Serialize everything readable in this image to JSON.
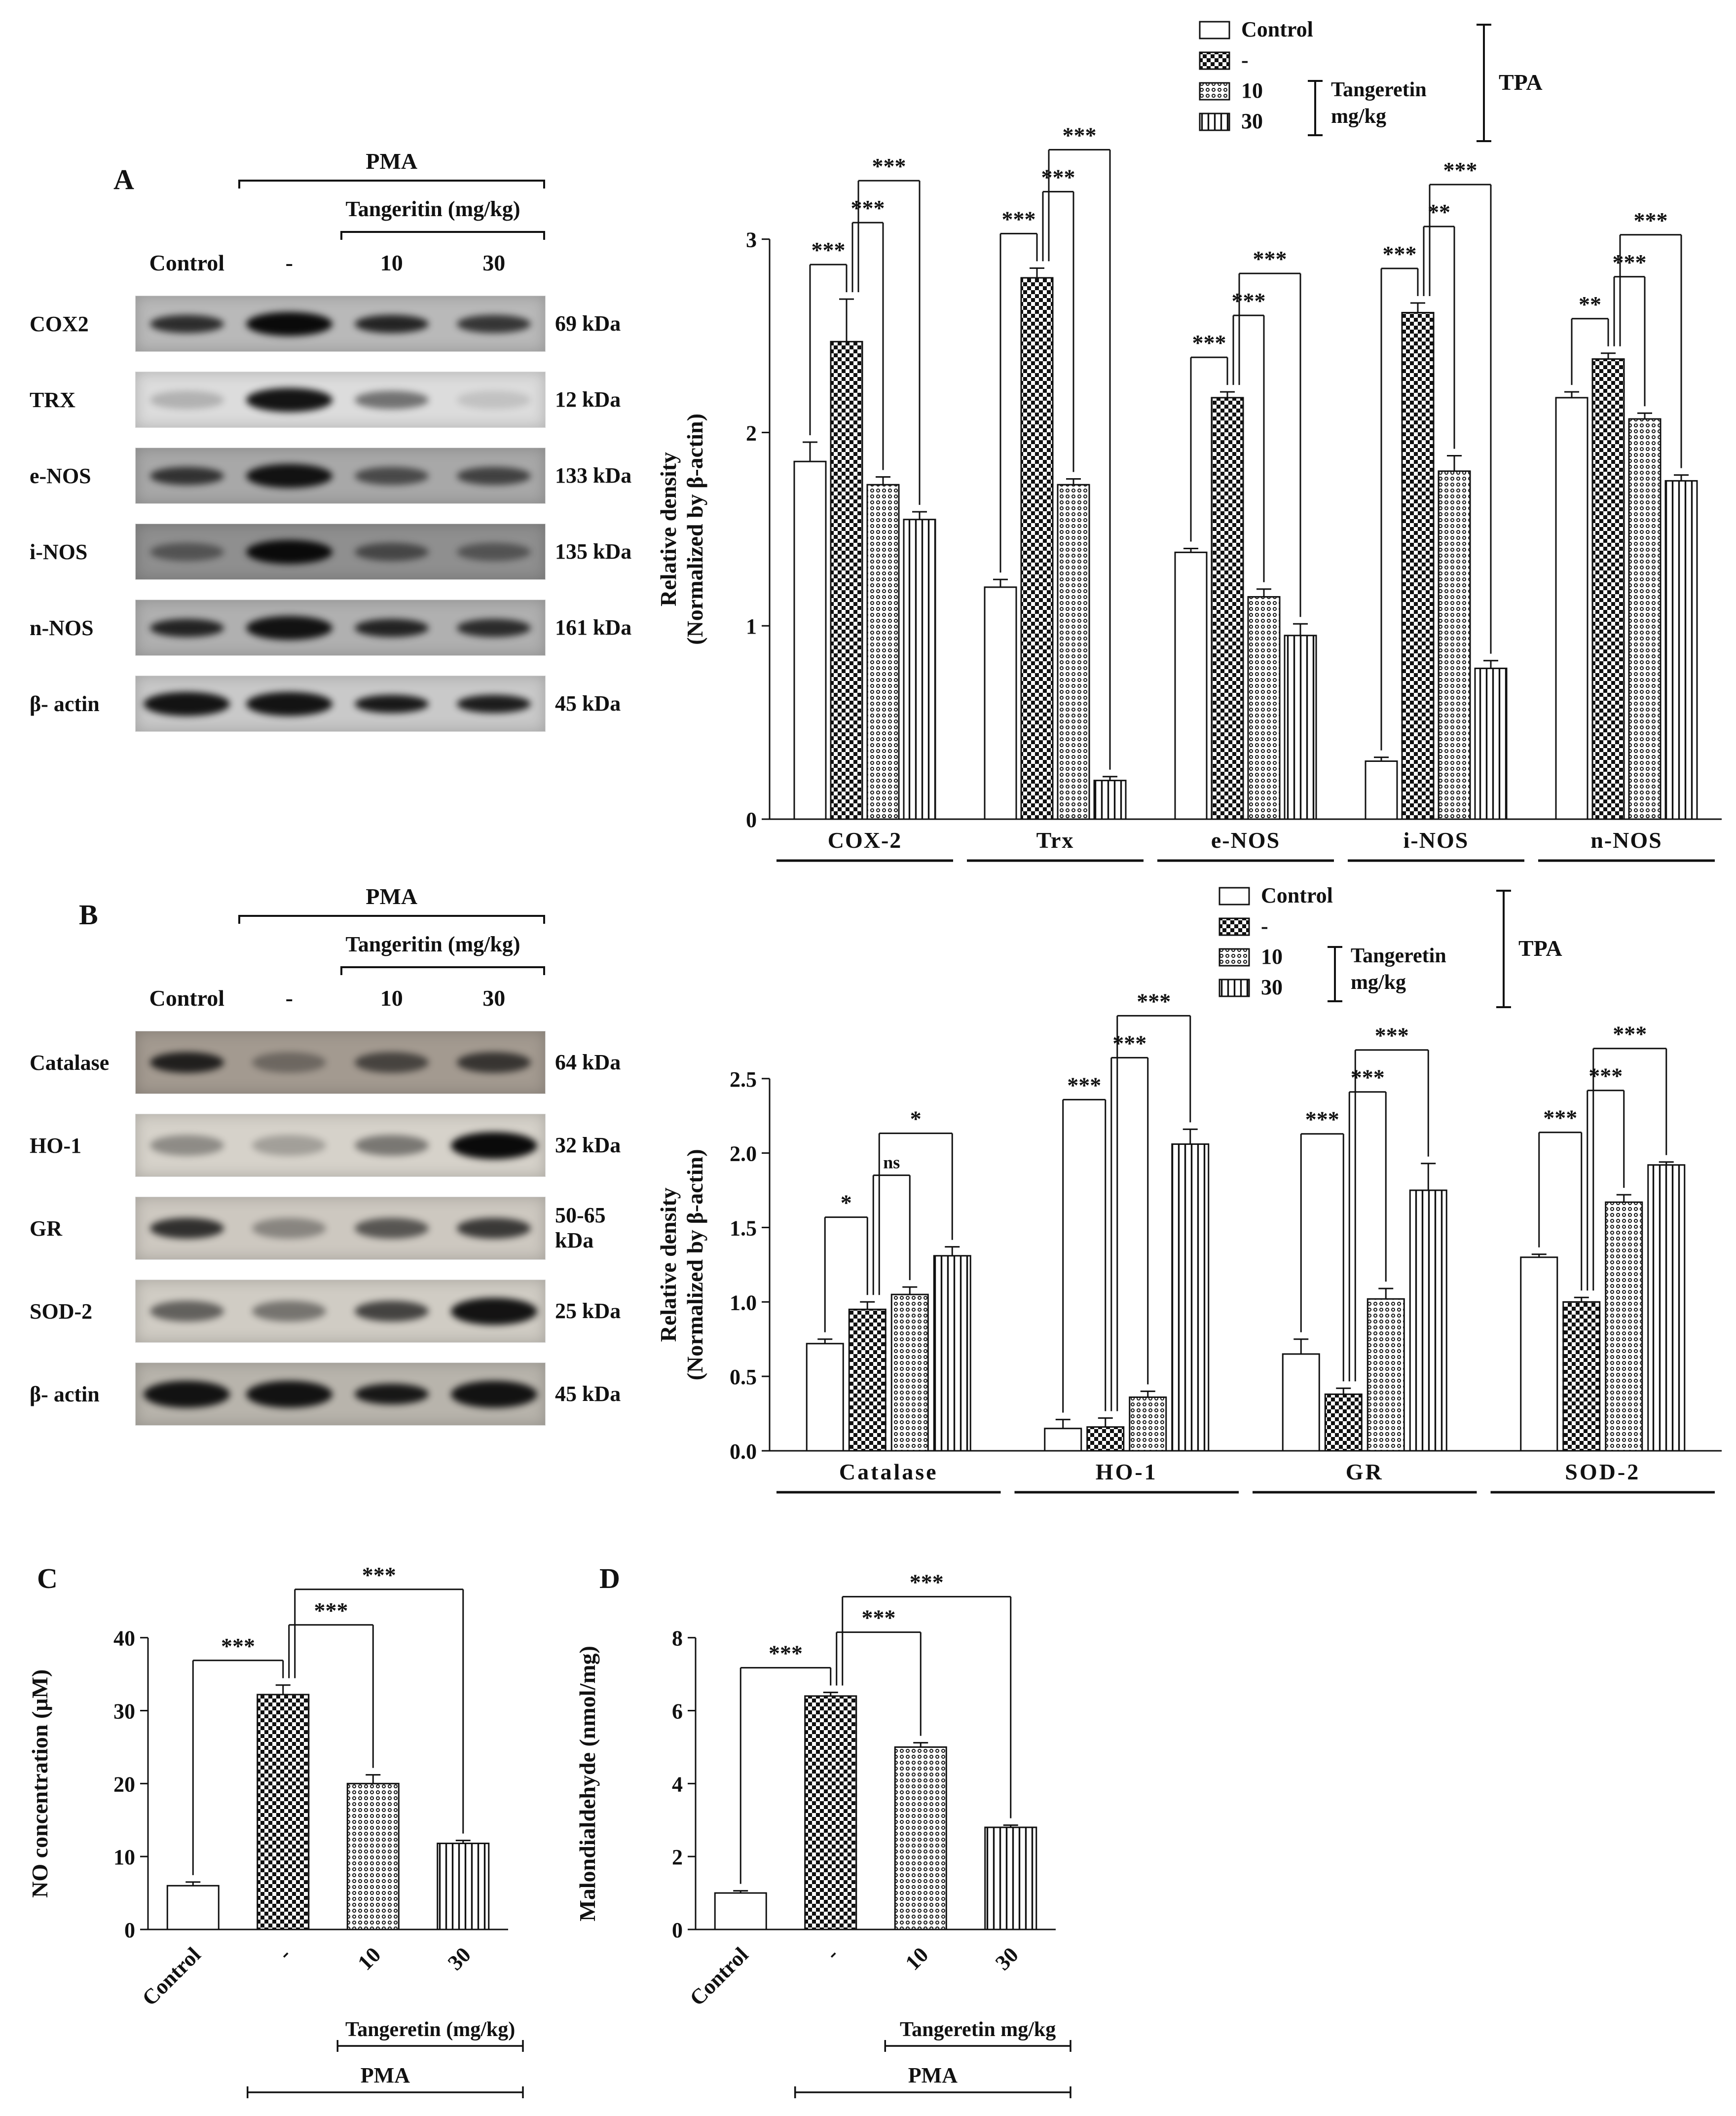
{
  "figure": {
    "panels": {
      "A": {
        "label": "A",
        "blot": {
          "treatment_label": "PMA",
          "dose_label": "Tangeritin (mg/kg)",
          "lane_headers": [
            "Control",
            "-",
            "10",
            "30"
          ],
          "rows": [
            {
              "protein": "COX2",
              "kda": "69 kDa",
              "bg": "#b9b9b9",
              "intensities": [
                0.8,
                1.0,
                0.85,
                0.75
              ]
            },
            {
              "protein": "TRX",
              "kda": "12 kDa",
              "bg": "#dcdcdc",
              "intensities": [
                0.2,
                0.95,
                0.5,
                0.12
              ]
            },
            {
              "protein": "e-NOS",
              "kda": "133 kDa",
              "bg": "#a8a8a8",
              "intensities": [
                0.75,
                0.95,
                0.6,
                0.65
              ]
            },
            {
              "protein": "i-NOS",
              "kda": "135 kDa",
              "bg": "#8f8f8f",
              "intensities": [
                0.45,
                1.0,
                0.55,
                0.45
              ]
            },
            {
              "protein": "n-NOS",
              "kda": "161 kDa",
              "bg": "#b0b0b0",
              "intensities": [
                0.85,
                0.95,
                0.85,
                0.8
              ]
            },
            {
              "protein": "β- actin",
              "kda": "45 kDa",
              "bg": "#c9c9c9",
              "intensities": [
                0.95,
                0.95,
                0.92,
                0.9
              ]
            }
          ]
        },
        "legend": {
          "entries": [
            {
              "label": "Control",
              "pattern": "open"
            },
            {
              "label": "-",
              "pattern": "checker"
            },
            {
              "label": "10",
              "pattern": "dots"
            },
            {
              "label": "30",
              "pattern": "vlines"
            }
          ],
          "bracket_label_lines": [
            "Tangeretin",
            "mg/kg"
          ],
          "outer_label": "TPA"
        }
      },
      "B": {
        "label": "B",
        "blot": {
          "treatment_label": "PMA",
          "dose_label": "Tangeritin (mg/kg)",
          "lane_headers": [
            "Control",
            "-",
            "10",
            "30"
          ],
          "rows": [
            {
              "protein": "Catalase",
              "kda": "64 kDa",
              "bg": "#a39a90",
              "intensities": [
                0.85,
                0.35,
                0.6,
                0.7
              ]
            },
            {
              "protein": "HO-1",
              "kda": "32 kDa",
              "bg": "#d6d2ca",
              "intensities": [
                0.35,
                0.25,
                0.45,
                1.0
              ]
            },
            {
              "protein": "GR",
              "kda": "50-65 kDa",
              "bg": "#cdc8c0",
              "intensities": [
                0.8,
                0.35,
                0.6,
                0.75
              ]
            },
            {
              "protein": "SOD-2",
              "kda": "25 kDa",
              "bg": "#d0ccc4",
              "intensities": [
                0.55,
                0.45,
                0.7,
                0.95
              ]
            },
            {
              "protein": "β- actin",
              "kda": "45 kDa",
              "bg": "#b8b4ac",
              "intensities": [
                0.95,
                0.95,
                0.92,
                0.95
              ]
            }
          ]
        },
        "legend": {
          "entries": [
            {
              "label": "Control",
              "pattern": "open"
            },
            {
              "label": "-",
              "pattern": "checker"
            },
            {
              "label": "10",
              "pattern": "dots"
            },
            {
              "label": "30",
              "pattern": "vlines"
            }
          ],
          "bracket_label_lines": [
            "Tangeretin",
            "mg/kg"
          ],
          "outer_label": "TPA"
        }
      },
      "C": {
        "label": "C"
      },
      "D": {
        "label": "D"
      }
    }
  },
  "chart_data": [
    {
      "id": "A",
      "type": "bar",
      "title": "",
      "ylabel_lines": [
        "Relative density",
        "(Normalized by β-actin)"
      ],
      "ylim": [
        0,
        3
      ],
      "yticks": [
        0,
        1,
        2,
        3
      ],
      "ytick_labels": [
        "0",
        "1",
        "2",
        "3"
      ],
      "categories": [
        "COX-2",
        "Trx",
        "e-NOS",
        "i-NOS",
        "n-NOS"
      ],
      "series": [
        {
          "name": "Control",
          "pattern": "open",
          "values": [
            1.85,
            1.2,
            1.38,
            0.3,
            2.18
          ],
          "errors": [
            0.1,
            0.04,
            0.02,
            0.02,
            0.03
          ]
        },
        {
          "name": "-",
          "pattern": "checker",
          "values": [
            2.47,
            2.8,
            2.18,
            2.62,
            2.38
          ],
          "errors": [
            0.22,
            0.05,
            0.03,
            0.05,
            0.03
          ]
        },
        {
          "name": "10",
          "pattern": "dots",
          "values": [
            1.73,
            1.73,
            1.15,
            1.8,
            2.07
          ],
          "errors": [
            0.04,
            0.03,
            0.04,
            0.08,
            0.03
          ]
        },
        {
          "name": "30",
          "pattern": "vlines",
          "values": [
            1.55,
            0.2,
            0.95,
            0.78,
            1.75
          ],
          "errors": [
            0.04,
            0.02,
            0.06,
            0.04,
            0.03
          ]
        }
      ],
      "significance": {
        "comparisons": [
          [
            0,
            1
          ],
          [
            1,
            2
          ],
          [
            1,
            3
          ]
        ],
        "labels": [
          [
            "***",
            "***",
            "***"
          ],
          [
            "***",
            "***",
            "***"
          ],
          [
            "***",
            "***",
            "***"
          ],
          [
            "***",
            "**",
            "***"
          ],
          [
            "**",
            "***",
            "***"
          ]
        ]
      },
      "legend_position": "top-right",
      "grid": false
    },
    {
      "id": "B",
      "type": "bar",
      "title": "",
      "ylabel_lines": [
        "Relative density",
        "(Normalized by β-actin)"
      ],
      "ylim": [
        0,
        2.5
      ],
      "yticks": [
        0,
        0.5,
        1,
        1.5,
        2,
        2.5
      ],
      "ytick_labels": [
        "0.0",
        "0.5",
        "1.0",
        "1.5",
        "2.0",
        "2.5"
      ],
      "categories": [
        "Catalase",
        "HO-1",
        "GR",
        "SOD-2"
      ],
      "series": [
        {
          "name": "Control",
          "pattern": "open",
          "values": [
            0.72,
            0.15,
            0.65,
            1.3
          ],
          "errors": [
            0.03,
            0.06,
            0.1,
            0.02
          ]
        },
        {
          "name": "-",
          "pattern": "checker",
          "values": [
            0.95,
            0.16,
            0.38,
            1.0
          ],
          "errors": [
            0.05,
            0.06,
            0.04,
            0.03
          ]
        },
        {
          "name": "10",
          "pattern": "dots",
          "values": [
            1.05,
            0.36,
            1.02,
            1.67
          ],
          "errors": [
            0.05,
            0.04,
            0.07,
            0.05
          ]
        },
        {
          "name": "30",
          "pattern": "vlines",
          "values": [
            1.31,
            2.06,
            1.75,
            1.92
          ],
          "errors": [
            0.06,
            0.1,
            0.18,
            0.02
          ]
        }
      ],
      "significance": {
        "comparisons": [
          [
            0,
            1
          ],
          [
            1,
            2
          ],
          [
            1,
            3
          ]
        ],
        "labels": [
          [
            "*",
            "ns",
            "*"
          ],
          [
            "***",
            "***",
            "***"
          ],
          [
            "***",
            "***",
            "***"
          ],
          [
            "***",
            "***",
            "***"
          ]
        ]
      },
      "legend_position": "top-right",
      "grid": false
    },
    {
      "id": "C",
      "type": "bar",
      "title": "",
      "ylabel_lines": [
        "NO concentration (μM)"
      ],
      "ylim": [
        0,
        40
      ],
      "yticks": [
        0,
        10,
        20,
        30,
        40
      ],
      "ytick_labels": [
        "0",
        "10",
        "20",
        "30",
        "40"
      ],
      "categories": [
        "Control",
        "-",
        "10",
        "30"
      ],
      "bars": {
        "values": [
          6.0,
          32.2,
          20.0,
          11.8
        ],
        "errors": [
          0.5,
          1.3,
          1.2,
          0.4
        ],
        "patterns": [
          "open",
          "checker",
          "dots",
          "vlines"
        ]
      },
      "significance": {
        "comparisons": [
          [
            0,
            1
          ],
          [
            1,
            2
          ],
          [
            1,
            3
          ]
        ],
        "labels": [
          "***",
          "***",
          "***"
        ]
      },
      "axis_annotations": {
        "tangeretin": "Tangeretin (mg/kg)",
        "pma": "PMA"
      },
      "grid": false
    },
    {
      "id": "D",
      "type": "bar",
      "title": "",
      "ylabel_lines": [
        "Malondialdehyde (nmol/mg)"
      ],
      "ylim": [
        0,
        8
      ],
      "yticks": [
        0,
        2,
        4,
        6,
        8
      ],
      "ytick_labels": [
        "0",
        "2",
        "4",
        "6",
        "8"
      ],
      "categories": [
        "Control",
        "-",
        "10",
        "30"
      ],
      "bars": {
        "values": [
          1.0,
          6.4,
          5.0,
          2.8
        ],
        "errors": [
          0.06,
          0.1,
          0.12,
          0.06
        ],
        "patterns": [
          "open",
          "checker",
          "dots",
          "vlines"
        ]
      },
      "significance": {
        "comparisons": [
          [
            0,
            1
          ],
          [
            1,
            2
          ],
          [
            1,
            3
          ]
        ],
        "labels": [
          "***",
          "***",
          "***"
        ]
      },
      "axis_annotations": {
        "tangeretin": "Tangeretin mg/kg",
        "pma": "PMA"
      },
      "grid": false
    }
  ]
}
